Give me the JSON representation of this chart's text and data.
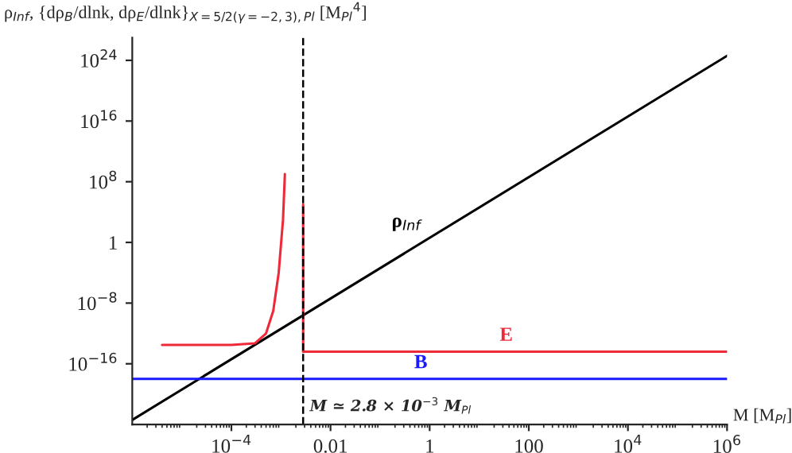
{
  "chart_data": {
    "type": "line",
    "xlabel": "M [M$_{Pl}$]",
    "ylabel": "ρ$_{Inf}$, {dρ$_{B}$/dlnk, dρ$_{E}$/dlnk}$_{X=5/2(γ=−2,3),Pl}$ [M$_{Pl}$$^{4}$]",
    "log": "xy",
    "xlim": [
      1e-06,
      1000000.0
    ],
    "ylim": [
      1e-24,
      1e+27
    ],
    "xticks": [
      {
        "value": 0.0001,
        "label": "10$^{−4}$"
      },
      0.01,
      1,
      100,
      {
        "value": 10000,
        "label": "10$^{4}$"
      },
      {
        "value": 1000000,
        "label": "10$^{6}$"
      }
    ],
    "yticks": [
      {
        "value": 1e-16,
        "label": "10$^{−16}$"
      },
      {
        "value": 1e-08,
        "label": "10$^{−8}$"
      },
      1,
      {
        "value": 100000000.0,
        "label": "10$^{8}$"
      },
      {
        "value": 1e+16,
        "label": "10$^{16}$"
      },
      {
        "value": 1e+24,
        "label": "10$^{24}$"
      }
    ],
    "grid": false,
    "legend": false,
    "series": [
      {
        "name": "ρ$_{Inf}$",
        "color": "#000000",
        "x": [
          1e-06,
          1000000.0
        ],
        "values": [
          4e-24,
          4e+24
        ]
      },
      {
        "name": "E",
        "color": "#ee2a3a",
        "x": [
          4e-06,
          0.0001,
          0.0003,
          0.0005,
          0.0007,
          0.0009,
          0.0011,
          0.0012,
          0.002,
          0.0028,
          0.0028,
          1000000.0
        ],
        "values": [
          3e-14,
          3e-14,
          5e-14,
          1e-12,
          1e-09,
          0.0001,
          1000.0,
          1000000000.0,
          null,
          100000.0,
          4e-15,
          4e-15
        ]
      },
      {
        "name": "B",
        "color": "#1a1aff",
        "x": [
          1e-06,
          1000000.0
        ],
        "values": [
          1e-18,
          1e-18
        ]
      }
    ],
    "ref_lines": [
      {
        "axis": "x",
        "value": 0.0028,
        "label": "M ≃ 2.8 × 10$^{−3}$ M$_{Pl}$",
        "color": "#000000",
        "line_style": "dashed"
      }
    ]
  }
}
